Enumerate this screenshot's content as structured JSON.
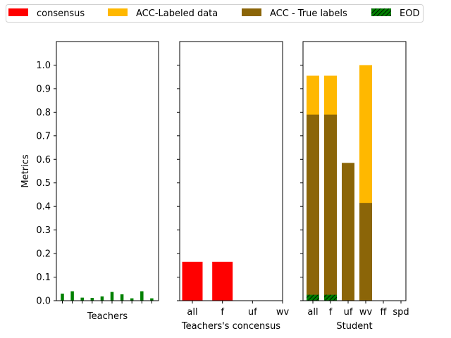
{
  "chart_data": {
    "type": "bar",
    "legend": {
      "placement": "top",
      "entries": [
        {
          "label": "consensus",
          "color": "#ff0000",
          "hatch": false
        },
        {
          "label": "ACC-Labeled data",
          "color": "#ffb800",
          "hatch": false
        },
        {
          "label": "ACC - True labels",
          "color": "#8b6508",
          "hatch": false
        },
        {
          "label": "EOD",
          "color": "#008000",
          "hatch": true
        }
      ]
    },
    "ylabel": "Metrics",
    "ylim": [
      0,
      1.1
    ],
    "yticks": [
      "0.0",
      "0.1",
      "0.2",
      "0.3",
      "0.4",
      "0.5",
      "0.6",
      "0.7",
      "0.8",
      "0.9",
      "1.0"
    ],
    "grid": false,
    "panels": [
      {
        "xlabel": "Teachers",
        "categories": [
          "",
          "",
          "",
          "",
          "",
          "",
          "",
          "",
          "",
          ""
        ],
        "series": [
          {
            "color": "#008000",
            "values": [
              0.03,
              0.04,
              0.013,
              0.012,
              0.018,
              0.037,
              0.027,
              0.01,
              0.04,
              0.01
            ]
          }
        ]
      },
      {
        "xlabel": "Teachers's concensus",
        "categories": [
          "all",
          "f",
          "uf",
          "wv"
        ],
        "series": [
          {
            "name": "consensus",
            "color": "#ff0000",
            "values": [
              0.165,
              0.165,
              0,
              0
            ]
          }
        ]
      },
      {
        "xlabel": "Student",
        "categories": [
          "all",
          "f",
          "uf",
          "wv",
          "ff",
          "spd"
        ],
        "series": [
          {
            "name": "ACC-Labeled data",
            "color": "#ffb800",
            "values": [
              0.955,
              0.955,
              0,
              1.0,
              0,
              0
            ]
          },
          {
            "name": "ACC - True labels",
            "color": "#8b6508",
            "values": [
              0.79,
              0.79,
              0.585,
              0.415,
              0,
              0
            ]
          },
          {
            "name": "EOD",
            "color": "#008000",
            "values": [
              0.025,
              0.025,
              0,
              0,
              0,
              0
            ]
          }
        ]
      }
    ]
  }
}
